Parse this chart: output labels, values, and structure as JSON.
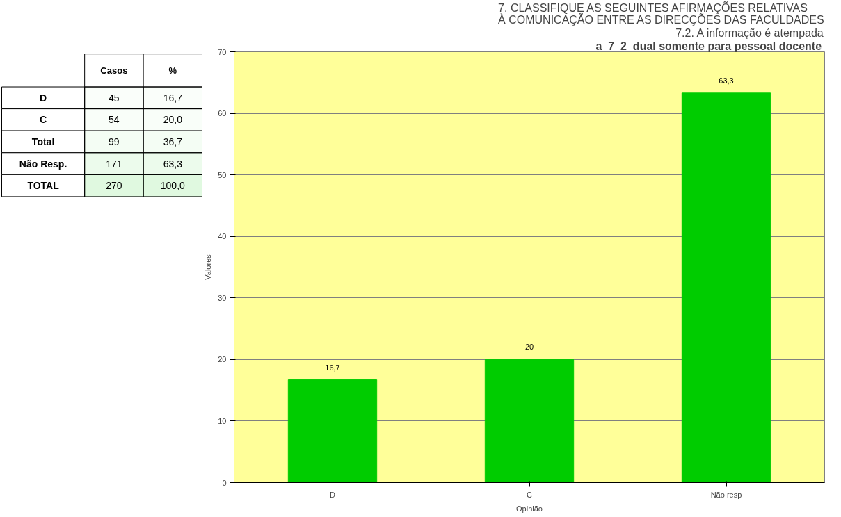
{
  "chart_data": [
    {
      "type": "heatmap",
      "categories": [
        "Casos",
        "%"
      ],
      "y_categories": [
        "D",
        "C",
        "Total",
        "Não Resp.",
        "TOTAL"
      ],
      "cells": [
        [
          45,
          16.7
        ],
        [
          54,
          20.0
        ],
        [
          99,
          36.7
        ],
        [
          171,
          63.3
        ],
        [
          270,
          100.0
        ]
      ],
      "cell_labels": [
        [
          "45",
          "16,7"
        ],
        [
          "54",
          "20,0"
        ],
        [
          "99",
          "36,7"
        ],
        [
          "171",
          "63,3"
        ],
        [
          "270",
          "100,0"
        ]
      ]
    },
    {
      "type": "bar",
      "title": "7. CLASSIFIQUE AS SEGUINTES AFIRMAÇÕES RELATIVAS À COMUNICAÇÃO ENTRE AS DIRECÇÕES DAS FACULDADES",
      "subtitle": "7.2. A informação é atempada",
      "annotations": [
        "a_7_2_dual somente para pessoal  docente"
      ],
      "xlabel": "Opinião",
      "ylabel": "Valores",
      "categories": [
        "D",
        "C",
        "Não resp"
      ],
      "values": [
        16.7,
        20,
        63.3
      ],
      "value_labels": [
        "16,7",
        "20",
        "63,3"
      ],
      "color": "#00cc00",
      "ylim": [
        0,
        70
      ],
      "yticks": [
        0,
        10,
        20,
        30,
        40,
        50,
        60,
        70
      ],
      "grid": "y",
      "legend": false
    }
  ]
}
